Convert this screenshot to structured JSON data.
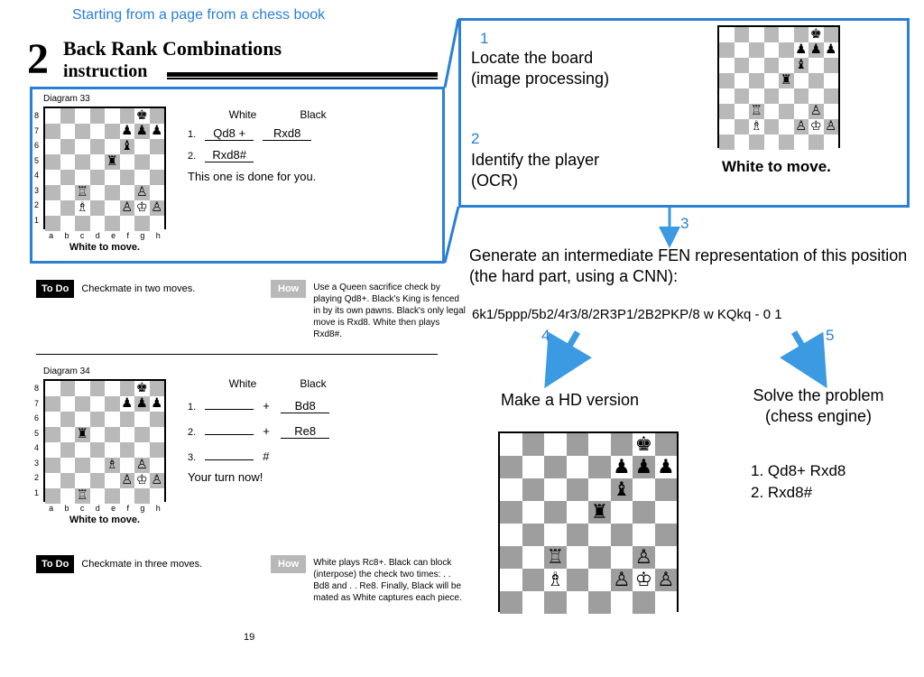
{
  "colors": {
    "accent": "#2a7fd6",
    "light_sq": "#ffffff",
    "dark_sq_print": "#b9b9b9",
    "dark_sq_hd": "#9e9e9e",
    "arrow": "#3b9ae1"
  },
  "caption": "Starting from a page from a chess book",
  "chapter": {
    "num": "2",
    "title_line1": "Back Rank Combinations",
    "title_line2": "instruction"
  },
  "diagram33": {
    "label": "Diagram 33",
    "caption": "White to move.",
    "fen": "6k1/5ppp/5b2/4r3/8/2R3P1/2B2PKP/8",
    "move_headers": [
      "White",
      "Black"
    ],
    "moves": [
      {
        "n": "1.",
        "w": "Qd8 +",
        "b": "Rxd8"
      },
      {
        "n": "2.",
        "w": "Rxd8#",
        "b": ""
      }
    ],
    "note": "This one is done for you."
  },
  "diagram34": {
    "label": "Diagram 34",
    "caption": "White to move.",
    "fen": "6k1/5ppp/8/2r5/8/4B1P1/5PKP/2R5",
    "move_headers": [
      "White",
      "Black"
    ],
    "moves": [
      {
        "n": "1.",
        "w": "",
        "suffix_w": "+",
        "b": "Bd8"
      },
      {
        "n": "2.",
        "w": "",
        "suffix_w": "+",
        "b": "Re8"
      },
      {
        "n": "3.",
        "w": "",
        "suffix_w": "#",
        "b": ""
      }
    ],
    "note": "Your turn now!"
  },
  "todo1": {
    "label": "To Do",
    "text": "Checkmate in two moves.",
    "how_label": "How",
    "how_text": "Use a Queen sacrifice check by playing Qd8+. Black's King is fenced in by its own pawns. Black's only legal move is Rxd8. White then plays Rxd8#."
  },
  "todo2": {
    "label": "To Do",
    "text": "Checkmate in three moves.",
    "how_label": "How",
    "how_text": "White plays Rc8+. Black can block (interpose) the check two times: . . Bd8 and . . Re8. Finally, Black will be mated as White captures each piece."
  },
  "page_number": "19",
  "pipeline": {
    "step1": {
      "n": "1",
      "text": "Locate the board\n(image processing)"
    },
    "step2": {
      "n": "2",
      "text": "Identify the player\n(OCR)"
    },
    "step3": {
      "n": "3",
      "text": "Generate an intermediate FEN representation of this position (the hard part, using a CNN):"
    },
    "step4": {
      "n": "4",
      "text": "Make a HD version"
    },
    "step5": {
      "n": "5",
      "text": "Solve the problem\n(chess engine)"
    }
  },
  "right_board": {
    "caption": "White to move.",
    "fen": "6k1/5ppp/5b2/4r3/8/2R3P1/2B2PKP/8"
  },
  "fen_string": "6k1/5ppp/5b2/4r3/8/2R3P1/2B2PKP/8 w KQkq - 0 1",
  "hd_board": {
    "fen": "6k1/5ppp/5b2/4r3/8/2R3P1/2B2PKP/8"
  },
  "solution": {
    "lines": [
      "1. Qd8+ Rxd8",
      "2. Rxd8#"
    ]
  }
}
